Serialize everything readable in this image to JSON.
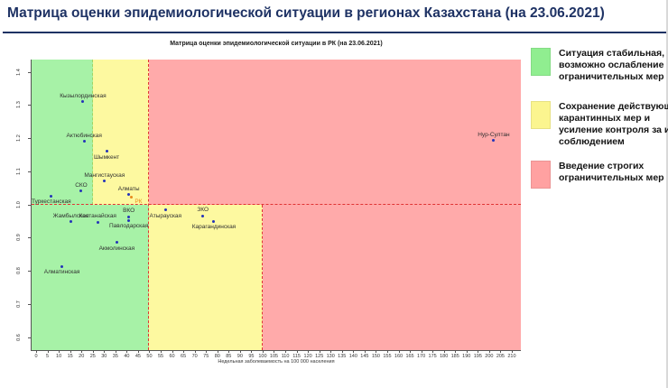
{
  "header": {
    "title": "Матрица оценки эпидемиологической ситуации в регионах Казахстана (на 23.06.2021)"
  },
  "legend": {
    "items": [
      {
        "name": "legend-stable",
        "color": "#90ee90",
        "lines": [
          "Ситуация стабильная,",
          "возможно ослабление",
          "ограничительных мер"
        ]
      },
      {
        "name": "legend-keep-quarantine",
        "color": "#fbf58f",
        "lines": [
          "Сохранение действующих",
          "карантинных мер и",
          "усиление контроля за их",
          "соблюдением"
        ]
      },
      {
        "name": "legend-strict-restrictions",
        "color": "#ffa1a1",
        "lines": [
          "Введение строгих",
          "ограничительных мер"
        ]
      }
    ]
  },
  "chart_data": {
    "type": "scatter",
    "title": "Матрица оценки эпидемиологической ситуации в РК (на 23.06.2021)",
    "xlabel": "Недельная заболеваемость на 100 000 населения",
    "x_axis": {
      "min": 0,
      "max": 210,
      "step": 5,
      "lim": [
        -2,
        214
      ]
    },
    "y_axis": {
      "min": 0.6,
      "max": 1.4,
      "step": 0.1,
      "lim": [
        0.561,
        1.437
      ]
    },
    "grid": false,
    "legend_position": "right",
    "zones": {
      "y_split": 1.0,
      "upper": {
        "green_max": 25,
        "yellow_max": 50
      },
      "lower": {
        "green_max": 50,
        "yellow_max": 100
      }
    },
    "colors": {
      "green": "#a7f2a7",
      "yellow": "#fdf9a0",
      "pink": "#ffaaaa",
      "line_red": "#e03434",
      "line_green": "#9fd468",
      "point": "#2433b8",
      "rk_orange": "#e8891d"
    },
    "points": [
      {
        "name": "Кызылординская",
        "x": 20.7,
        "y": 1.31,
        "label": "above"
      },
      {
        "name": "Актюбинская",
        "x": 21.2,
        "y": 1.19,
        "label": "above"
      },
      {
        "name": "Шымкент",
        "x": 31.1,
        "y": 1.16,
        "label": "below"
      },
      {
        "name": "Мангистауская",
        "x": 30.2,
        "y": 1.07,
        "label": "above"
      },
      {
        "name": "СКО",
        "x": 19.9,
        "y": 1.04,
        "label": "above"
      },
      {
        "name": "Туркестанская",
        "x": 6.7,
        "y": 1.025,
        "label": "below"
      },
      {
        "name": "Алматы",
        "x": 40.9,
        "y": 1.03,
        "label": "above"
      },
      {
        "name": "РК",
        "x": 42.0,
        "y": 1.022,
        "label": "right",
        "color": "#e8891d"
      },
      {
        "name": "Жамбылская",
        "x": 15.3,
        "y": 0.948,
        "label": "above"
      },
      {
        "name": "Костанайская",
        "x": 27.2,
        "y": 0.946,
        "label": "above"
      },
      {
        "name": "ВКО",
        "x": 40.9,
        "y": 0.963,
        "label": "above"
      },
      {
        "name": "Павлодарская",
        "x": 40.9,
        "y": 0.952,
        "label": "below"
      },
      {
        "name": "Атырауская",
        "x": 57.1,
        "y": 0.984,
        "label": "below"
      },
      {
        "name": "ЗКО",
        "x": 73.6,
        "y": 0.966,
        "label": "above"
      },
      {
        "name": "Карагандинская",
        "x": 78.5,
        "y": 0.949,
        "label": "below"
      },
      {
        "name": "Акмолинская",
        "x": 35.6,
        "y": 0.886,
        "label": "below"
      },
      {
        "name": "Алматинская",
        "x": 11.4,
        "y": 0.813,
        "label": "below"
      },
      {
        "name": "Нур-Султан",
        "x": 202.0,
        "y": 1.193,
        "label": "above"
      }
    ]
  }
}
